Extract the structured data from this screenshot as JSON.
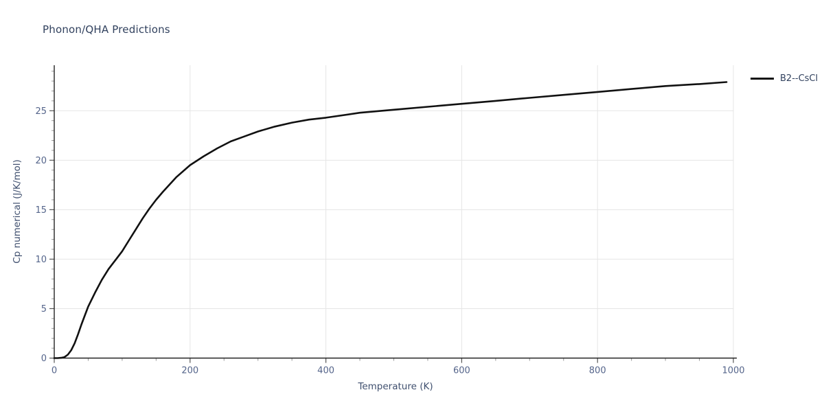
{
  "header": {
    "title": "Phonon/QHA Predictions"
  },
  "legend": {
    "position": "top-right-outside",
    "entries": [
      {
        "label": "B2--CsCl",
        "color": "#111111"
      }
    ]
  },
  "colors": {
    "background": "#ffffff",
    "title_text": "#31415e",
    "axis_label_text": "#3f4f6e",
    "tick_label_text": "#54648a",
    "axis_line": "#222222",
    "major_tick": "#555555",
    "minor_tick": "#999999",
    "gridline": "#e5e5e5",
    "series_line": "#111111"
  },
  "chart_data": {
    "type": "line",
    "title": "Phonon/QHA Predictions",
    "xlabel": "Temperature (K)",
    "ylabel": "Cp numerical (J/K/mol)",
    "xlim": [
      0,
      1000
    ],
    "ylim": [
      0,
      29.6
    ],
    "x_major_ticks": [
      0,
      200,
      400,
      600,
      800,
      1000
    ],
    "x_minor_tick_step": 50,
    "y_major_ticks": [
      0,
      5,
      10,
      15,
      20,
      25
    ],
    "y_minor_tick_step": 1,
    "y_minor_tick_max": 29,
    "grid": "major-only",
    "legend_position": "top-right-outside",
    "series": [
      {
        "name": "B2--CsCl",
        "color": "#111111",
        "x": [
          0,
          5,
          10,
          15,
          20,
          25,
          30,
          35,
          40,
          45,
          50,
          60,
          70,
          80,
          90,
          100,
          110,
          120,
          130,
          140,
          150,
          160,
          180,
          200,
          220,
          240,
          260,
          280,
          300,
          325,
          350,
          375,
          400,
          450,
          500,
          550,
          600,
          650,
          700,
          750,
          800,
          850,
          900,
          950,
          990
        ],
        "y": [
          0,
          0,
          0.03,
          0.1,
          0.35,
          0.8,
          1.5,
          2.4,
          3.4,
          4.3,
          5.2,
          6.6,
          7.9,
          9.0,
          9.9,
          10.8,
          11.9,
          13.0,
          14.1,
          15.1,
          16.0,
          16.8,
          18.3,
          19.5,
          20.4,
          21.2,
          21.9,
          22.4,
          22.9,
          23.4,
          23.8,
          24.1,
          24.3,
          24.8,
          25.1,
          25.4,
          25.7,
          26.0,
          26.3,
          26.6,
          26.9,
          27.2,
          27.5,
          27.7,
          27.9
        ]
      }
    ]
  }
}
